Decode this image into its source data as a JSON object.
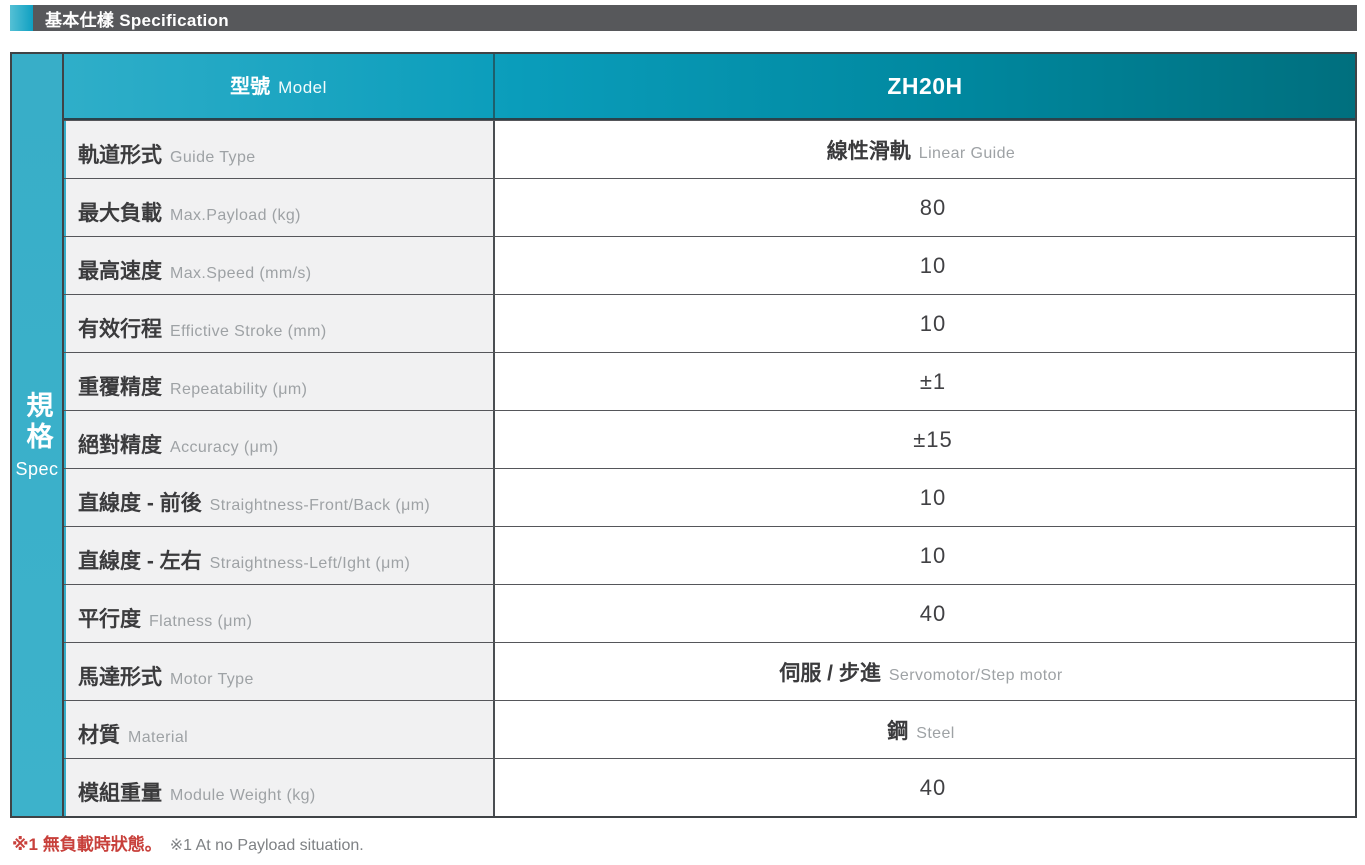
{
  "header": {
    "title": "基本仕樣 Specification"
  },
  "sidebar": {
    "zh": "規格",
    "en": "Spec"
  },
  "table": {
    "header": {
      "label_zh": "型號",
      "label_en": "Model",
      "model": "ZH20H"
    },
    "rows": [
      {
        "label_zh": "軌道形式",
        "label_en": "Guide Type",
        "value_zh": "線性滑軌",
        "value_en": "Linear Guide",
        "value_num": ""
      },
      {
        "label_zh": "最大負載",
        "label_en": "Max.Payload (kg)",
        "value_zh": "",
        "value_en": "",
        "value_num": "80"
      },
      {
        "label_zh": "最高速度",
        "label_en": "Max.Speed (mm/s)",
        "value_zh": "",
        "value_en": "",
        "value_num": "10"
      },
      {
        "label_zh": "有效行程",
        "label_en": "Effictive Stroke (mm)",
        "value_zh": "",
        "value_en": "",
        "value_num": "10"
      },
      {
        "label_zh": "重覆精度",
        "label_en": "Repeatability (μm)",
        "value_zh": "",
        "value_en": "",
        "value_num": "±1"
      },
      {
        "label_zh": "絕對精度",
        "label_en": "Accuracy (μm)",
        "value_zh": "",
        "value_en": "",
        "value_num": "±15"
      },
      {
        "label_zh": "直線度 - 前後",
        "label_en": "Straightness-Front/Back (μm)",
        "value_zh": "",
        "value_en": "",
        "value_num": "10"
      },
      {
        "label_zh": "直線度 - 左右",
        "label_en": "Straightness-Left/Ight (μm)",
        "value_zh": "",
        "value_en": "",
        "value_num": "10"
      },
      {
        "label_zh": "平行度",
        "label_en": "Flatness (μm)",
        "value_zh": "",
        "value_en": "",
        "value_num": "40"
      },
      {
        "label_zh": "馬達形式",
        "label_en": "Motor Type",
        "value_zh": "伺服 / 步進",
        "value_en": "Servomotor/Step motor",
        "value_num": ""
      },
      {
        "label_zh": "材質",
        "label_en": "Material",
        "value_zh": "鋼",
        "value_en": "Steel",
        "value_num": ""
      },
      {
        "label_zh": "模組重量",
        "label_en": "Module Weight (kg)",
        "value_zh": "",
        "value_en": "",
        "value_num": "40"
      }
    ]
  },
  "footnote": {
    "zh": "※1 無負載時狀態。",
    "en": "※1 At no Payload situation."
  },
  "colors": {
    "accent_teal": "#2FAEC9",
    "header_gradient_end": "#006F7E",
    "section_bar_gray": "#57585B",
    "label_cell_bg": "#F1F1F2",
    "note_red": "#C8403B"
  }
}
